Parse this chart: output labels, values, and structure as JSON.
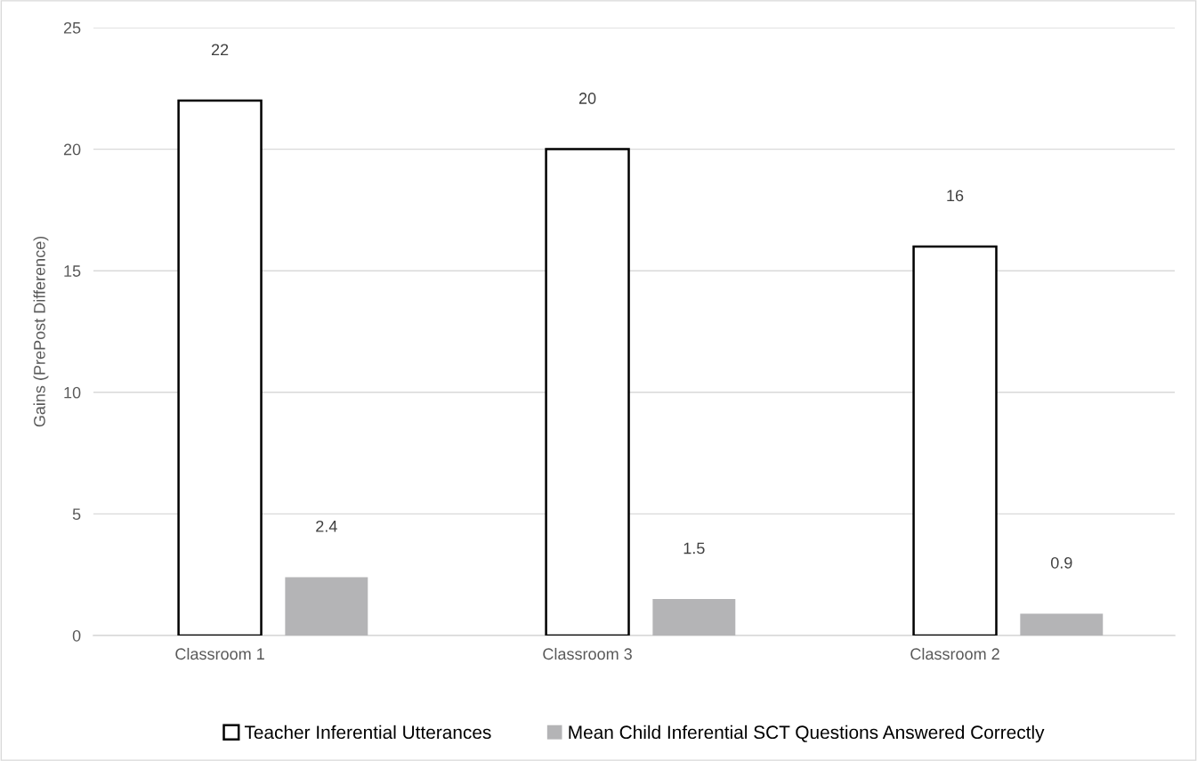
{
  "chart_data": {
    "type": "bar",
    "ylabel": "Gains (PrePost Difference)",
    "categories": [
      "Classroom 1",
      "Classroom 3",
      "Classroom 2"
    ],
    "series": [
      {
        "name": "Teacher Inferential Utterances",
        "color": "#ffffff",
        "values": [
          22,
          20,
          16
        ]
      },
      {
        "name": "Mean Child Inferential SCT Questions Answered Correctly",
        "color": "#b4b4b6",
        "values": [
          2.4,
          1.5,
          0.9
        ]
      }
    ],
    "ylim": [
      0,
      25
    ],
    "yticks": [
      0,
      5,
      10,
      15,
      20,
      25
    ],
    "grid": "y",
    "legend": "bottom",
    "data_labels": true
  }
}
